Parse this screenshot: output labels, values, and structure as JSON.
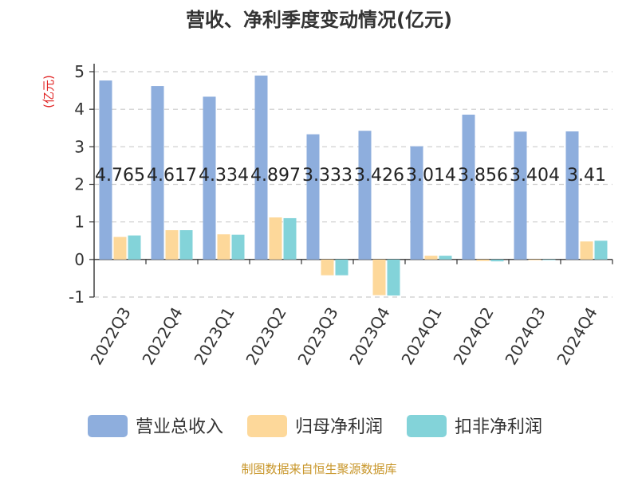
{
  "chart_data": {
    "type": "bar",
    "title": "营收、净利季度变动情况(亿元)",
    "ylabel": "(亿元)",
    "xlabel": "",
    "categories": [
      "2022Q3",
      "2022Q4",
      "2023Q1",
      "2023Q2",
      "2023Q3",
      "2023Q4",
      "2024Q1",
      "2024Q2",
      "2024Q3",
      "2024Q4"
    ],
    "series": [
      {
        "name": "营业总收入",
        "color": "#8eaedd",
        "values": [
          4.765,
          4.617,
          4.334,
          4.897,
          3.333,
          3.426,
          3.014,
          3.856,
          3.404,
          3.41
        ]
      },
      {
        "name": "归母净利润",
        "color": "#fdd89a",
        "values": [
          0.6,
          0.78,
          0.67,
          1.12,
          -0.42,
          -0.95,
          0.1,
          -0.04,
          -0.02,
          0.48
        ]
      },
      {
        "name": "扣非净利润",
        "color": "#83d3d9",
        "values": [
          0.64,
          0.78,
          0.66,
          1.1,
          -0.42,
          -0.96,
          0.1,
          -0.05,
          -0.01,
          0.5
        ]
      }
    ],
    "data_labels": [
      "4.765",
      "4.617",
      "4.334",
      "4.897",
      "3.333",
      "3.426",
      "3.014",
      "3.856",
      "3.404",
      "3.41"
    ],
    "ylim": [
      -1,
      5
    ],
    "yticks": [
      -1,
      0,
      1,
      2,
      3,
      4,
      5
    ],
    "grid": true,
    "legend_position": "bottom"
  },
  "footer": {
    "source": "制图数据来自恒生聚源数据库"
  },
  "colors": {
    "title": "#333333",
    "ylabel": "#e02020",
    "axis": "#333333",
    "grid": "#cccccc",
    "source": "#c8962a"
  }
}
